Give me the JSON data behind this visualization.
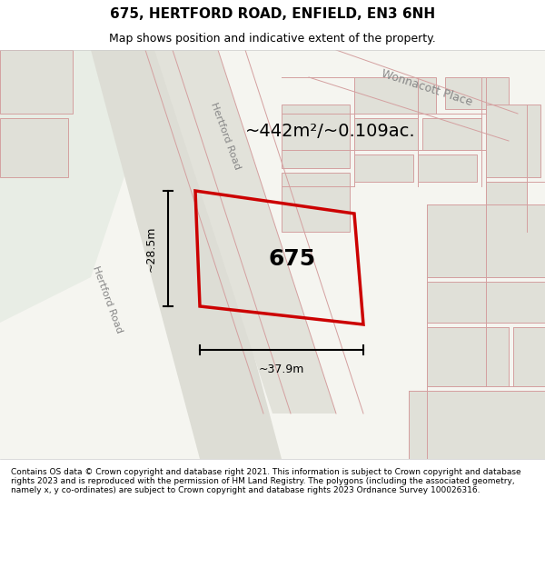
{
  "title": "675, HERTFORD ROAD, ENFIELD, EN3 6NH",
  "subtitle": "Map shows position and indicative extent of the property.",
  "footer": "Contains OS data © Crown copyright and database right 2021. This information is subject to Crown copyright and database rights 2023 and is reproduced with the permission of HM Land Registry. The polygons (including the associated geometry, namely x, y co-ordinates) are subject to Crown copyright and database rights 2023 Ordnance Survey 100026316.",
  "map_bg": "#f5f5f0",
  "road_bg": "#e8e8e0",
  "green_bg": "#e8ede8",
  "highlight_color": "#cc0000",
  "road_line_color": "#d4a0a0",
  "building_fill": "#e0e0d8",
  "building_edge": "#d4a0a0",
  "area_text": "~442m²/~0.109ac.",
  "number_text": "675",
  "dim_width": "~37.9m",
  "dim_height": "~28.5m",
  "road_label_1": "Hertford Road",
  "road_label_2": "Hertford Road",
  "road_label_3": "Wonnacott Place"
}
